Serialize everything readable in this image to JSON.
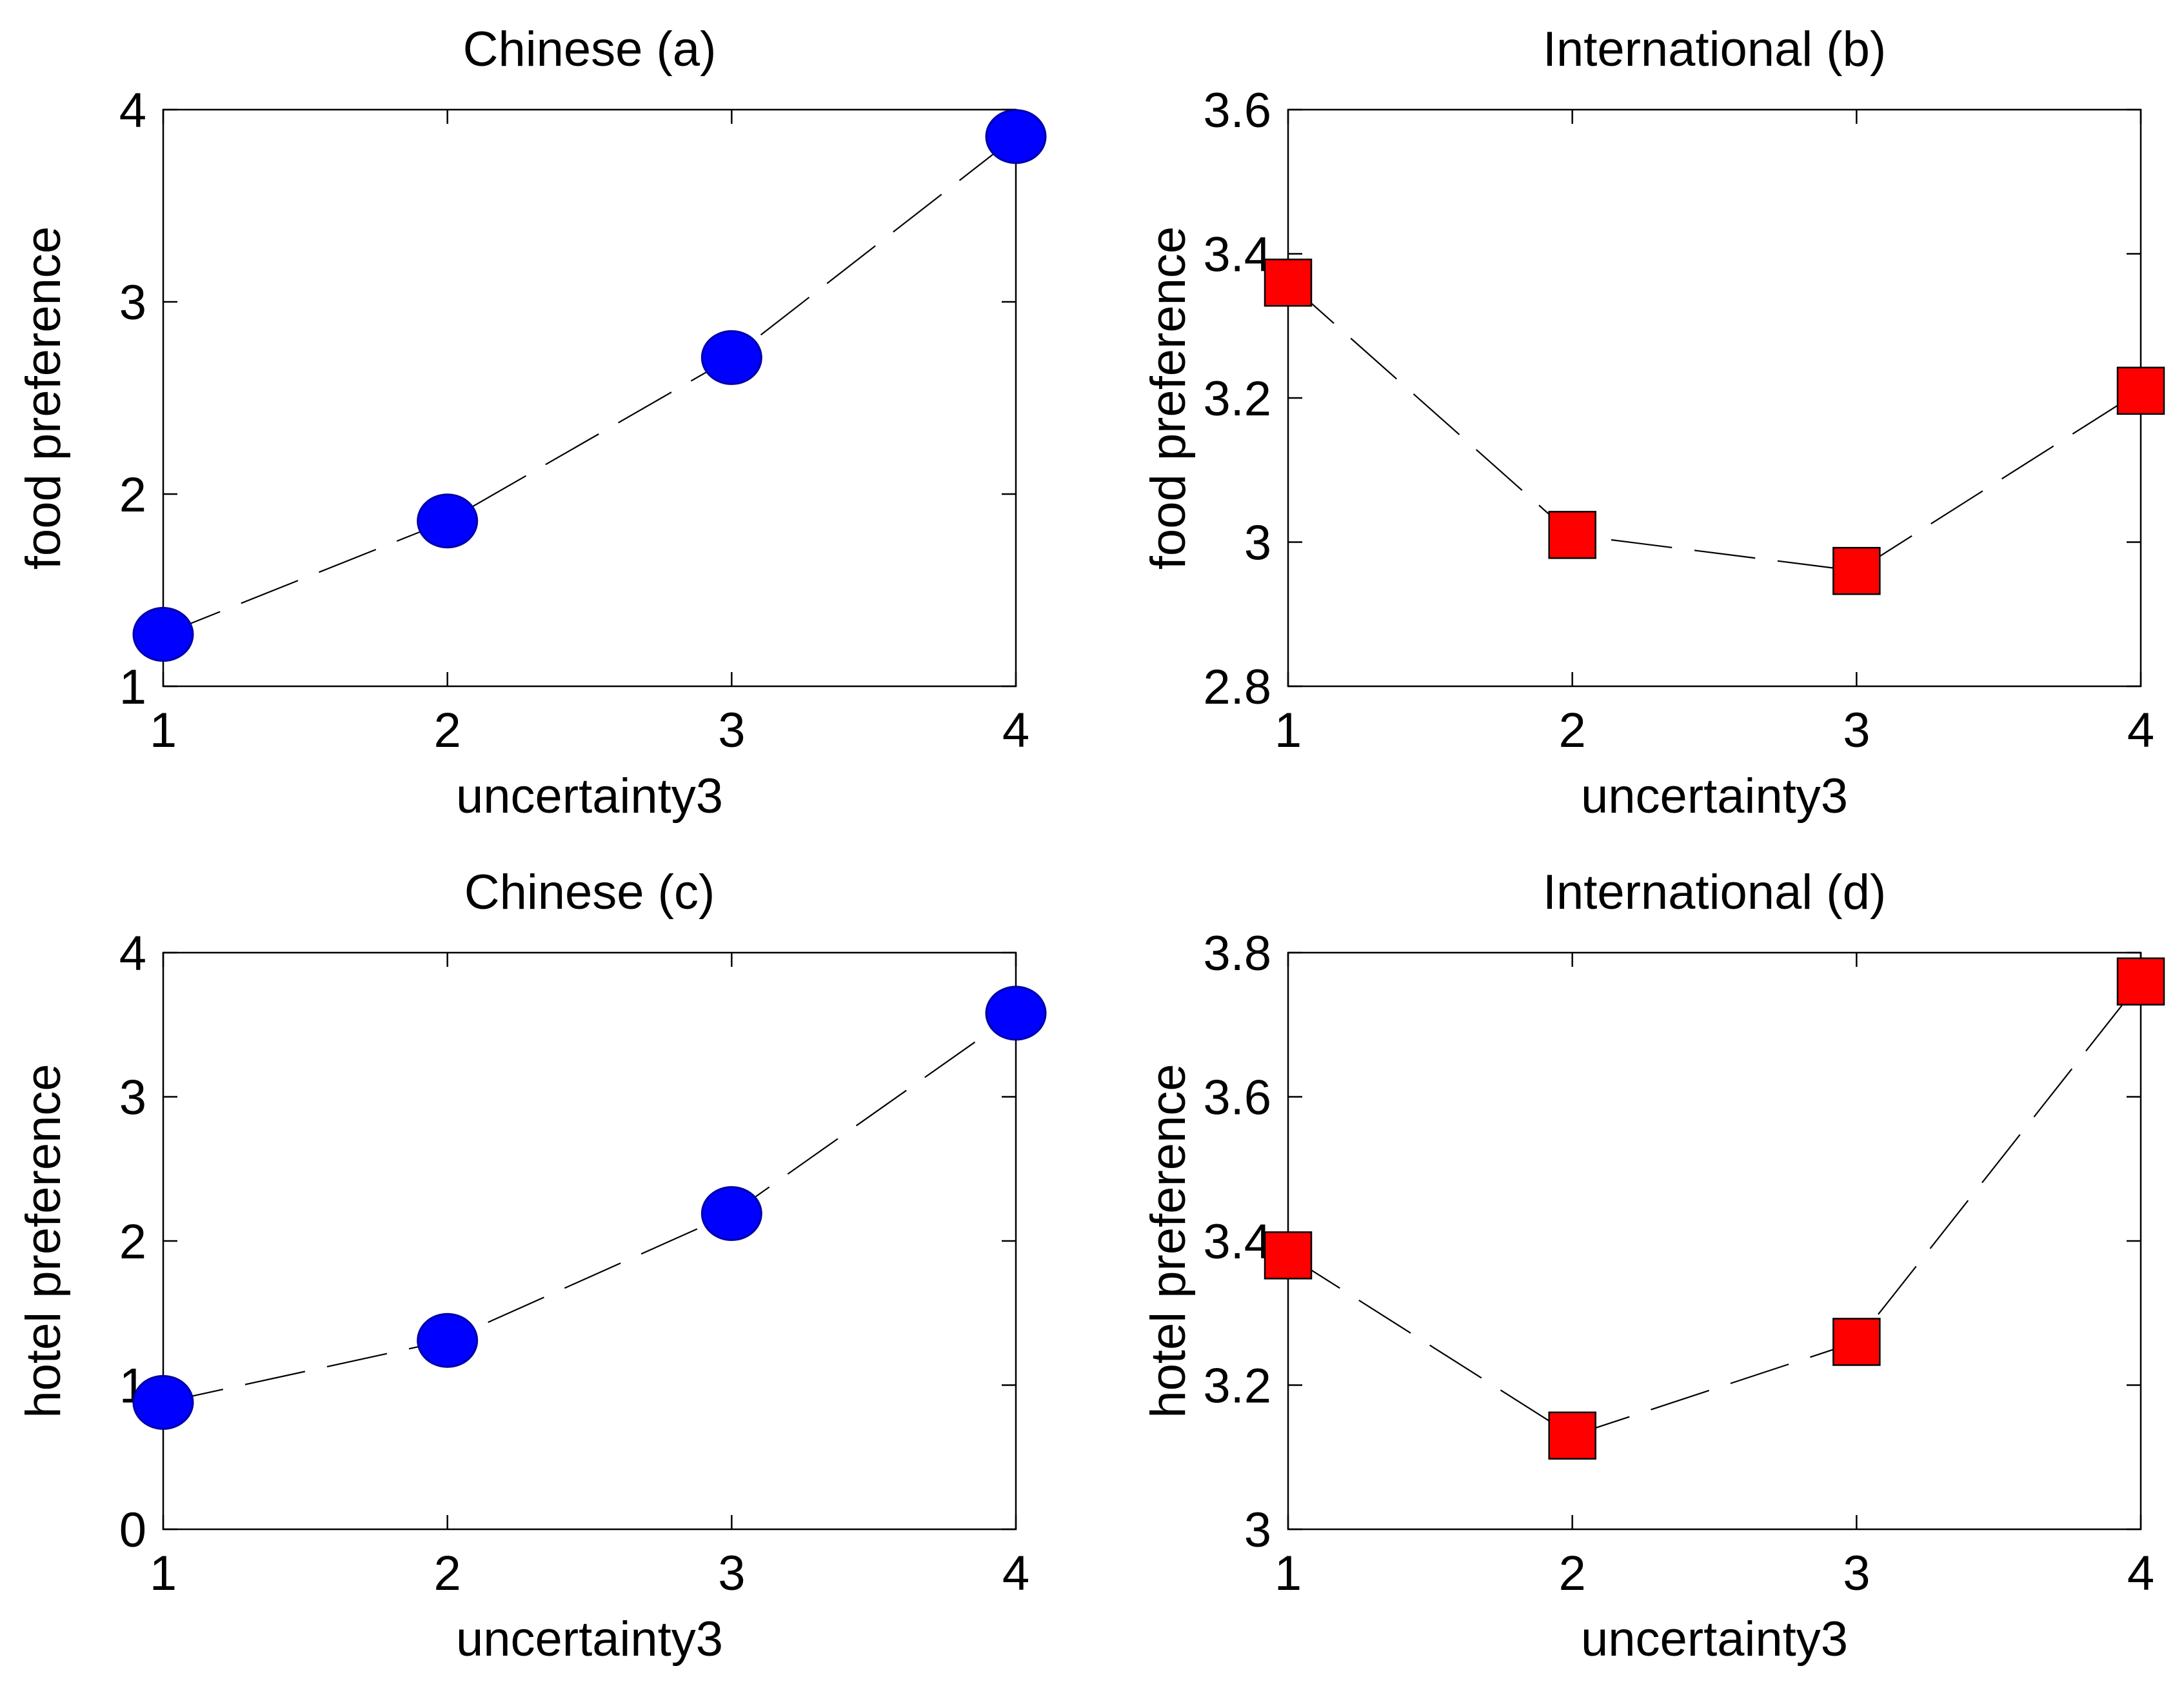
{
  "chart_data": [
    {
      "type": "line",
      "title": "Chinese (a)",
      "xlabel": "uncertainty3",
      "ylabel": "food preference",
      "x": [
        1,
        2,
        3,
        4
      ],
      "xticks": [
        "1",
        "2",
        "3",
        "4"
      ],
      "xlim": [
        1,
        4
      ],
      "yticks": [
        "1",
        "2",
        "3",
        "4"
      ],
      "ylim": [
        1,
        4
      ],
      "series": [
        {
          "name": "Chinese",
          "marker": "circle",
          "color": "#0000ff",
          "values": [
            1.27,
            1.86,
            2.71,
            3.86
          ]
        }
      ],
      "line_style": "dashed",
      "grid": false
    },
    {
      "type": "line",
      "title": "International (b)",
      "xlabel": "uncertainty3",
      "ylabel": "food preference",
      "x": [
        1,
        2,
        3,
        4
      ],
      "xticks": [
        "1",
        "2",
        "3",
        "4"
      ],
      "xlim": [
        1,
        4
      ],
      "yticks": [
        "2.8",
        "3",
        "3.2",
        "3.4",
        "3.6"
      ],
      "ylim": [
        2.8,
        3.6
      ],
      "series": [
        {
          "name": "International",
          "marker": "square",
          "color": "#ff0000",
          "values": [
            3.36,
            3.01,
            2.96,
            3.21
          ]
        }
      ],
      "line_style": "dashed",
      "grid": false
    },
    {
      "type": "line",
      "title": "Chinese (c)",
      "xlabel": "uncertainty3",
      "ylabel": "hotel preference",
      "x": [
        1,
        2,
        3,
        4
      ],
      "xticks": [
        "1",
        "2",
        "3",
        "4"
      ],
      "xlim": [
        1,
        4
      ],
      "yticks": [
        "0",
        "1",
        "2",
        "3",
        "4"
      ],
      "ylim": [
        0,
        4
      ],
      "series": [
        {
          "name": "Chinese",
          "marker": "circle",
          "color": "#0000ff",
          "values": [
            0.88,
            1.31,
            2.19,
            3.58
          ]
        }
      ],
      "line_style": "dashed",
      "grid": false
    },
    {
      "type": "line",
      "title": "International (d)",
      "xlabel": "uncertainty3",
      "ylabel": "hotel preference",
      "x": [
        1,
        2,
        3,
        4
      ],
      "xticks": [
        "1",
        "2",
        "3",
        "4"
      ],
      "xlim": [
        1,
        4
      ],
      "yticks": [
        "3",
        "3.2",
        "3.4",
        "3.6",
        "3.8"
      ],
      "ylim": [
        3,
        3.8
      ],
      "series": [
        {
          "name": "International",
          "marker": "square",
          "color": "#ff0000",
          "values": [
            3.38,
            3.13,
            3.26,
            3.76
          ]
        }
      ],
      "line_style": "dashed",
      "grid": false
    }
  ]
}
